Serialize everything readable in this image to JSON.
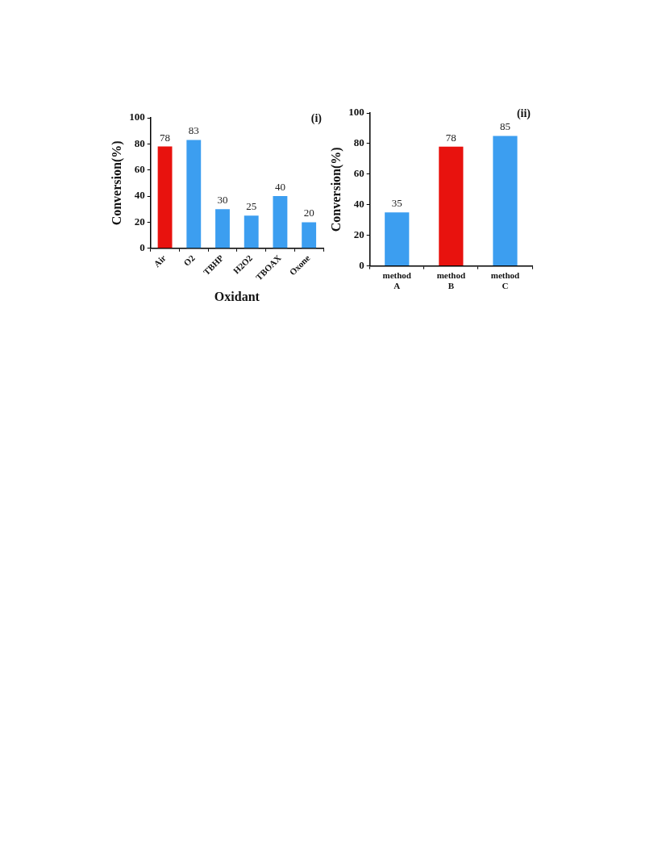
{
  "chart_data": [
    {
      "type": "bar",
      "title": "(i)",
      "xlabel": "Oxidant",
      "ylabel": "Conversion(%)",
      "categories": [
        "Air",
        "O2",
        "TBHP",
        "H2O2",
        "TBOAX",
        "Oxone"
      ],
      "values": [
        78,
        83,
        30,
        25,
        40,
        20
      ],
      "colors": [
        "#e8120e",
        "#3c9ef0",
        "#3c9ef0",
        "#3c9ef0",
        "#3c9ef0",
        "#3c9ef0"
      ],
      "ylim": [
        0,
        100
      ],
      "yticks": [
        0,
        20,
        40,
        60,
        80,
        100
      ],
      "data_labels": true
    },
    {
      "type": "bar",
      "title": "(ii)",
      "ylabel": "Conversion(%)",
      "categories": [
        "method A",
        "method B",
        "method C"
      ],
      "values": [
        35,
        78,
        85
      ],
      "colors": [
        "#3c9ef0",
        "#e8120e",
        "#3c9ef0"
      ],
      "ylim": [
        0,
        100
      ],
      "yticks": [
        0,
        20,
        40,
        60,
        80,
        100
      ],
      "data_labels": true
    }
  ]
}
